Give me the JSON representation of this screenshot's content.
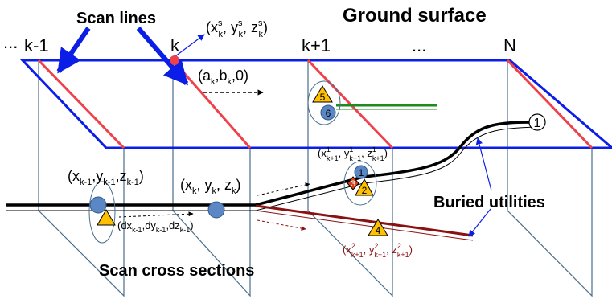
{
  "labels": {
    "scan_lines": "Scan lines",
    "ground_surface": "Ground surface",
    "scan_cross_sections": "Scan cross sections",
    "buried_utilities": "Buried utilities"
  },
  "indices": {
    "ellipsis_left": "...",
    "k_minus_1": "k-1",
    "k": "k",
    "k_plus_1": "k+1",
    "ellipsis_mid": "...",
    "n": "N"
  },
  "math": {
    "sensor_position": {
      "p1": "(x",
      "s1": "s",
      "b1": "k",
      "p2": ", y",
      "s2": "s",
      "b2": "k",
      "p3": ", z",
      "s3": "s",
      "b3": "k",
      "p4": ")"
    },
    "direction": {
      "p1": "(a",
      "b1": "k",
      "p2": ",b",
      "b2": "k",
      "p3": ",0)"
    },
    "point_k_minus_1": {
      "p1": "(x",
      "b1": "k-1",
      "p2": ",y",
      "b2": "k-1",
      "p3": ",z",
      "b3": "k-1",
      "p4": ")"
    },
    "point_k": {
      "p1": "(x",
      "b1": "k",
      "p2": ", y",
      "b2": "k",
      "p3": ", z",
      "b3": "k",
      "p4": ")"
    },
    "delta": {
      "p1": "(dx",
      "b1": "k-1",
      "p2": ",dy",
      "b2": "k-1",
      "p3": ",dz",
      "b3": "k-1",
      "p4": ")"
    },
    "utility_1_point": {
      "p1": "(x",
      "s1": "1",
      "b1": "k+1",
      "p2": ", y",
      "s2": "1",
      "b2": "k+1",
      "p3": ", z",
      "s3": "1",
      "b3": "k+1",
      "p4": ")"
    },
    "utility_2_point": {
      "p1": "(x",
      "s1": "2",
      "b1": "k+1",
      "p2": ", y",
      "s2": "2",
      "b2": "k+1",
      "p3": ", z",
      "s3": "2",
      "b3": "k+1",
      "p4": ")"
    }
  },
  "markers": {
    "m1": "1",
    "m2": "2",
    "m3": "3",
    "m4": "4",
    "m5": "5",
    "m6": "6",
    "end_1": "1"
  },
  "colors": {
    "plane_blue": "#0a1ee8",
    "scan_red": "#f0414b",
    "gray_line": "#4a6f8c",
    "utility_black": "#000000",
    "utility_red": "#8b1010",
    "utility_green": "#1f8a1f",
    "circle_fill": "#5b87c4",
    "triangle_fill": "#ffc000",
    "diamond_fill": "#d84016"
  }
}
